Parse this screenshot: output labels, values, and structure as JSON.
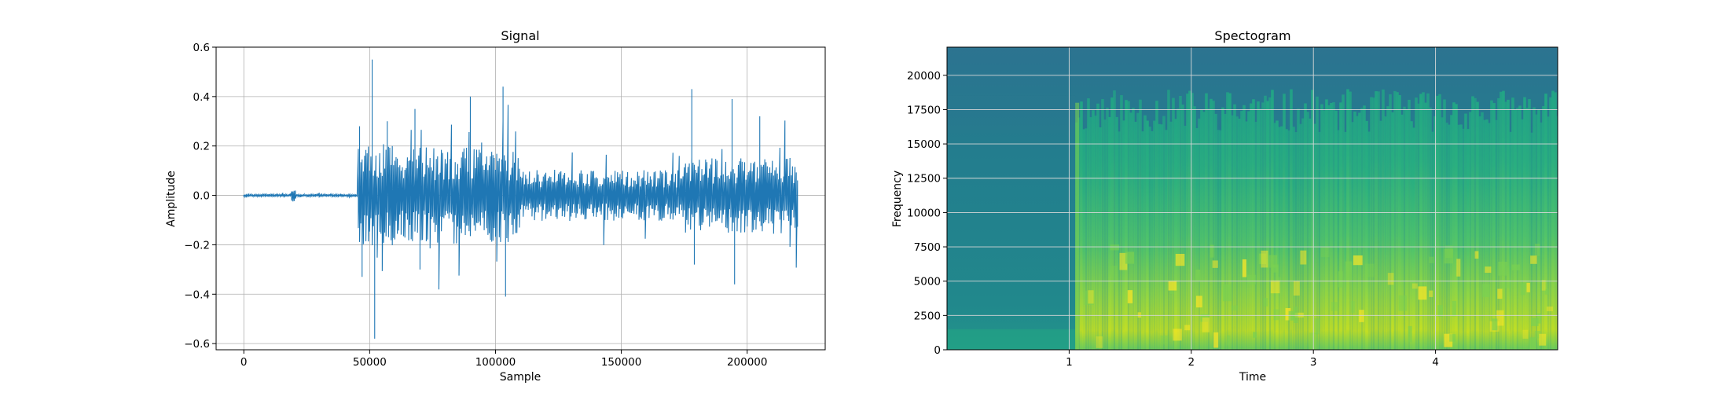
{
  "chart_data": [
    {
      "type": "line",
      "title": "Signal",
      "xlabel": "Sample",
      "ylabel": "Amplitude",
      "xlim": [
        -11000,
        231000
      ],
      "ylim": [
        -0.625,
        0.6
      ],
      "xticks": [
        0,
        50000,
        100000,
        150000,
        200000
      ],
      "xtick_labels": [
        "0",
        "50000",
        "100000",
        "150000",
        "200000"
      ],
      "yticks": [
        -0.6,
        -0.4,
        -0.2,
        0.0,
        0.2,
        0.4,
        0.6
      ],
      "ytick_labels": [
        "−0.6",
        "−0.4",
        "−0.2",
        "0.0",
        "0.2",
        "0.4",
        "0.6"
      ],
      "grid": true,
      "color": "#1f77b4",
      "sample_count": 220000,
      "envelope": [
        {
          "x": 0,
          "y": 0.003
        },
        {
          "x": 18000,
          "y": 0.006
        },
        {
          "x": 19500,
          "y": 0.03
        },
        {
          "x": 21000,
          "y": 0.006
        },
        {
          "x": 45000,
          "y": 0.006
        },
        {
          "x": 46000,
          "y": 0.28
        },
        {
          "x": 47000,
          "y": -0.33
        },
        {
          "x": 51000,
          "y": 0.55
        },
        {
          "x": 52000,
          "y": -0.58
        },
        {
          "x": 57000,
          "y": 0.3
        },
        {
          "x": 68000,
          "y": 0.35
        },
        {
          "x": 70000,
          "y": -0.3
        },
        {
          "x": 90000,
          "y": 0.4
        },
        {
          "x": 103000,
          "y": 0.44
        },
        {
          "x": 104000,
          "y": -0.41
        },
        {
          "x": 130000,
          "y": 0.15
        },
        {
          "x": 155000,
          "y": 0.12
        },
        {
          "x": 178000,
          "y": 0.43
        },
        {
          "x": 179000,
          "y": -0.28
        },
        {
          "x": 194000,
          "y": 0.39
        },
        {
          "x": 195000,
          "y": -0.36
        },
        {
          "x": 205000,
          "y": 0.32
        },
        {
          "x": 220000,
          "y": 0.07
        }
      ]
    },
    {
      "type": "heatmap",
      "title": "Spectogram",
      "xlabel": "Time",
      "ylabel": "Frequency",
      "xlim": [
        0,
        5
      ],
      "ylim": [
        0,
        22050
      ],
      "xticks": [
        1,
        2,
        3,
        4
      ],
      "xtick_labels": [
        "1",
        "2",
        "3",
        "4"
      ],
      "yticks": [
        0,
        2500,
        5000,
        7500,
        10000,
        12500,
        15000,
        17500,
        20000
      ],
      "ytick_labels": [
        "0",
        "2500",
        "5000",
        "7500",
        "10000",
        "12500",
        "15000",
        "17500",
        "20000"
      ],
      "grid": true,
      "colormap": "viridis",
      "colors": [
        "#2a788e",
        "#22a884",
        "#7ad151",
        "#fde725"
      ],
      "onset_time": 1.05
    }
  ]
}
